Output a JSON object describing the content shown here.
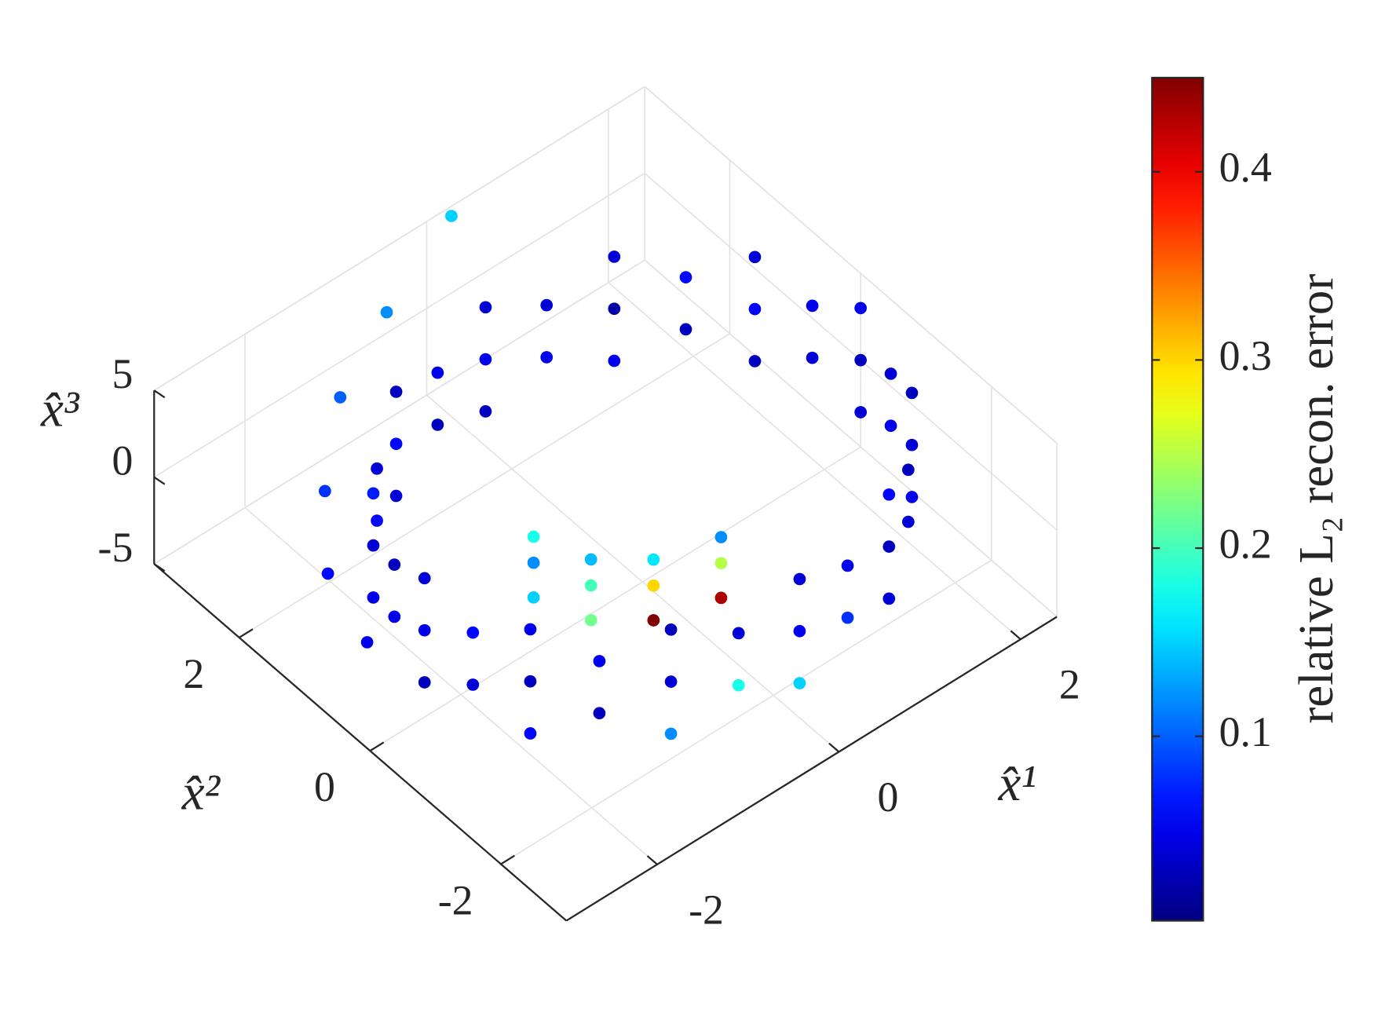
{
  "chart_data": {
    "type": "scatter3d",
    "xlabel": "x̂¹",
    "ylabel": "x̂²",
    "zlabel": "x̂³",
    "colorbar_label": "relative L₂ recon. error",
    "colormap": "jet",
    "grid": true,
    "xlim": [
      -3,
      2.4
    ],
    "ylim": [
      -3,
      3.3
    ],
    "zlim": [
      -5,
      5
    ],
    "xticks": [
      -2,
      0,
      2
    ],
    "yticks": [
      -2,
      0,
      2
    ],
    "zticks": [
      -5,
      0,
      5
    ],
    "clim": [
      0.002,
      0.45
    ],
    "cticks": [
      0.1,
      0.2,
      0.3,
      0.4
    ],
    "x": [
      2.4,
      2.4,
      2.4,
      2.1,
      2.1,
      2.1,
      1.2,
      1.2,
      1.2,
      0,
      0,
      0,
      -1.2,
      -1.2,
      -1.2,
      -2.1,
      -2.1,
      -2.1,
      -2.4,
      -2.4,
      -2.4,
      -2.1,
      -2.1,
      -2.1,
      -1.2,
      -1.2,
      -1.2,
      0,
      0,
      0,
      1.2,
      1.2,
      1.2,
      2.1,
      2.1,
      2.1,
      2.3,
      2.3,
      1.7,
      1.7,
      0.6,
      0.6,
      -0.6,
      -0.6,
      -1.7,
      -1.7,
      -2.3,
      -2.3,
      -2.3,
      -2.3,
      -1.7,
      -1.7,
      -0.6,
      -0.6,
      0.6,
      0.6,
      1.7,
      1.7,
      2.3,
      2.3,
      -1.2,
      -1.2,
      -1.2,
      -1,
      -1,
      -1,
      -0.6,
      -0.6,
      -0.6,
      0,
      0,
      0,
      -2.6,
      -2.6,
      -2.2,
      -1.6,
      -0.8,
      0.2
    ],
    "y": [
      0,
      0,
      0,
      1.2,
      1.2,
      1.2,
      2.1,
      2.1,
      2.1,
      2.4,
      2.4,
      2.4,
      2.1,
      2.1,
      2.1,
      1.2,
      1.2,
      1.2,
      0,
      0,
      0,
      -1.2,
      -1.2,
      -1.2,
      -2.1,
      -2.1,
      -2.1,
      -2.4,
      -2.4,
      -2.4,
      -2.1,
      -2.1,
      -2.1,
      -1.2,
      -1.2,
      -1.2,
      0.6,
      0.6,
      1.7,
      1.7,
      2.3,
      2.3,
      2.3,
      2.3,
      1.7,
      1.7,
      0.6,
      0.6,
      -0.6,
      -0.6,
      -1.7,
      -1.7,
      -2.3,
      -2.3,
      -2.3,
      -2.3,
      -1.7,
      -1.7,
      -0.6,
      -0.6,
      0,
      0,
      0,
      -0.6,
      -0.6,
      -0.6,
      -1,
      -1,
      -1,
      -1.2,
      -1.2,
      -1.2,
      0.6,
      1.2,
      1.8,
      2.4,
      2.8,
      3.2
    ],
    "z": [
      -3,
      0,
      3,
      -3,
      0,
      3,
      -3,
      0,
      3,
      -3,
      0,
      3,
      -3,
      0,
      3,
      -3,
      0,
      3,
      -3,
      0,
      3,
      -3,
      0,
      3,
      -3,
      0,
      3,
      -3,
      0,
      3,
      -3,
      0,
      3,
      -3,
      0,
      3,
      -1.5,
      1.5,
      -1.5,
      1.5,
      -1.5,
      1.5,
      -1.5,
      1.5,
      -1.5,
      1.5,
      -1.5,
      1.5,
      -1.5,
      1.5,
      -1.5,
      1.5,
      -1.5,
      1.5,
      -1.5,
      1.5,
      -1.5,
      1.5,
      -1.5,
      1.5,
      -2,
      0,
      1.5,
      -2,
      0,
      1.5,
      -2,
      0,
      1.5,
      -2,
      0,
      1.5,
      -2,
      0,
      1.5,
      3,
      4,
      5
    ],
    "c": [
      0.04,
      0.03,
      0.05,
      0.03,
      0.06,
      0.04,
      0.05,
      0.02,
      0.04,
      0.03,
      0.05,
      0.04,
      0.04,
      0.06,
      0.03,
      0.05,
      0.04,
      0.07,
      0.03,
      0.05,
      0.04,
      0.06,
      0.03,
      0.05,
      0.12,
      0.04,
      0.03,
      0.15,
      0.05,
      0.04,
      0.04,
      0.03,
      0.06,
      0.05,
      0.04,
      0.03,
      0.04,
      0.05,
      0.03,
      0.06,
      0.05,
      0.04,
      0.03,
      0.05,
      0.06,
      0.04,
      0.05,
      0.03,
      0.04,
      0.06,
      0.03,
      0.05,
      0.18,
      0.04,
      0.08,
      0.05,
      0.04,
      0.03,
      0.05,
      0.04,
      0.15,
      0.12,
      0.18,
      0.22,
      0.2,
      0.14,
      0.45,
      0.3,
      0.16,
      0.43,
      0.25,
      0.12,
      0.05,
      0.06,
      0.08,
      0.1,
      0.12,
      0.15
    ]
  }
}
